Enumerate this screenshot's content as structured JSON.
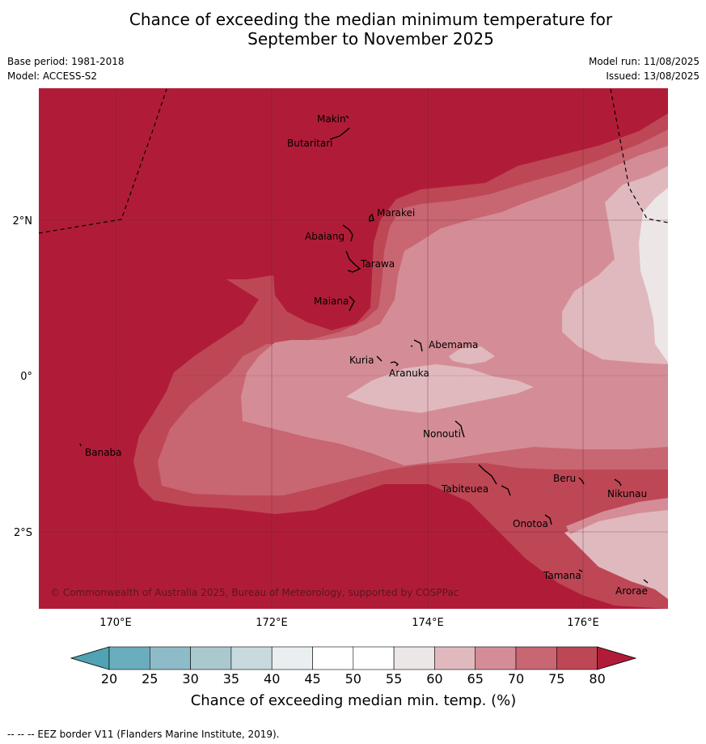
{
  "title_line1": "Chance of exceeding the median minimum temperature for",
  "title_line2": "September to November 2025",
  "meta_left": {
    "base_period": "Base period: 1981-2018",
    "model": "Model: ACCESS-S2"
  },
  "meta_right": {
    "model_run": "Model run: 11/08/2025",
    "issued": "Issued: 13/08/2025"
  },
  "axes": {
    "x_ticks": [
      "170°E",
      "172°E",
      "174°E",
      "176°E"
    ],
    "y_ticks": [
      "2°N",
      "0°",
      "2°S"
    ]
  },
  "places": {
    "makin": "Makin",
    "butaritari": "Butaritari",
    "marakei": "Marakei",
    "abaiang": "Abaiang",
    "tarawa": "Tarawa",
    "maiana": "Maiana",
    "abemama": "Abemama",
    "kuria": "Kuria",
    "aranuka": "Aranuka",
    "nonouti": "Nonouti",
    "banaba": "Banaba",
    "beru": "Beru",
    "tabiteuea": "Tabiteuea",
    "nikunau": "Nikunau",
    "onotoa": "Onotoa",
    "tamana": "Tamana",
    "arorae": "Arorae"
  },
  "credit": "© Commonwealth of Australia 2025, Bureau of Meteorology, supported by COSPPac",
  "colorbar": {
    "ticks": [
      "20",
      "25",
      "30",
      "35",
      "40",
      "45",
      "50",
      "55",
      "60",
      "65",
      "70",
      "75",
      "80"
    ],
    "label": "Chance of exceeding median min. temp. (%)",
    "colors": [
      "#6aadbd",
      "#8dbcc8",
      "#a9c9cf",
      "#c8dadd",
      "#e9eff1",
      "#ffffff",
      "#ffffff",
      "#ece6e7",
      "#e0b9be",
      "#d48d96",
      "#c86672",
      "#be4755"
    ],
    "low_color": "#4fa3b3",
    "high_color": "#b01c37"
  },
  "footer": "-- -- -- EEZ border V11 (Flanders Marine Institute, 2019)."
}
